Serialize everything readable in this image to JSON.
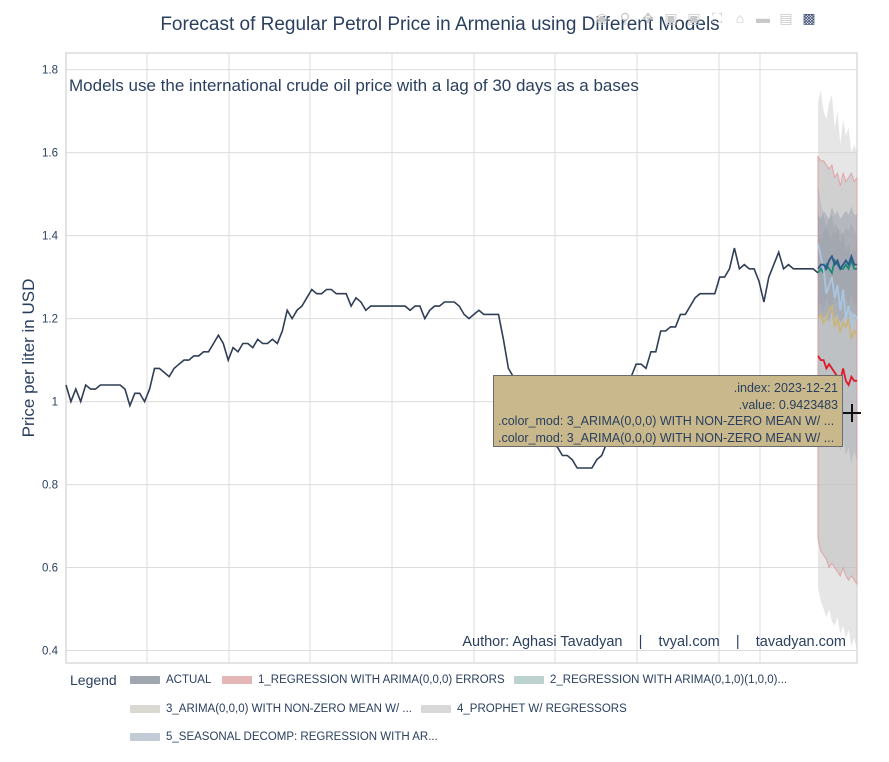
{
  "modebar": {
    "icons": [
      "camera-icon",
      "zoom-icon",
      "pan-icon",
      "zoom-in-icon",
      "zoom-out-icon",
      "autoscale-icon",
      "home-icon",
      "spike-lines-icon",
      "compare-icon",
      "plotly-logo-icon"
    ]
  },
  "tooltip": {
    "line1": ".index: 2023-12-21",
    "line2": ".value: 0.9423483",
    "line3": ".color_mod: 3_ARIMA(0,0,0) WITH NON-ZERO MEAN W/ ...",
    "line4": ".color_mod: 3_ARIMA(0,0,0) WITH NON-ZERO MEAN W/ ..."
  },
  "legend": {
    "title": "Legend",
    "items": [
      {
        "label": "ACTUAL",
        "color": "#9fa6b0"
      },
      {
        "label": "1_REGRESSION WITH ARIMA(0,0,0) ERRORS",
        "color": "#e3b7b7"
      },
      {
        "label": "2_REGRESSION WITH ARIMA(0,1,0)(1,0,0)...",
        "color": "#bcd2cf"
      },
      {
        "label": "3_ARIMA(0,0,0) WITH NON-ZERO MEAN W/ ...",
        "color": "#d9d9d1"
      },
      {
        "label": "4_PROPHET W/ REGRESSORS",
        "color": "#d8d8d8"
      },
      {
        "label": "5_SEASONAL DECOMP: REGRESSION WITH AR...",
        "color": "#c3ccd6"
      }
    ]
  },
  "chart_data": {
    "type": "line",
    "title": "Forecast of Regular Petrol Price in Armenia using Different Models",
    "subtitle": "Models use the international crude oil price with a lag of 30 days as a bases",
    "ylabel": "Price per liter in USD",
    "xlabel": "",
    "ylim": [
      0.37,
      1.84
    ],
    "yticks": [
      "0.4",
      "0.6",
      "0.8",
      "1",
      "1.2",
      "1.4",
      "1.6",
      "1.8"
    ],
    "ytick_values": [
      0.4,
      0.6,
      0.8,
      1.0,
      1.2,
      1.4,
      1.6,
      1.8
    ],
    "grid": true,
    "annotation": "Author: Aghasi Tavadyan    |    tvyal.com    |    tavadyan.com",
    "actual": {
      "name": "ACTUAL",
      "color": "#2f3e55",
      "values": [
        1.04,
        1.0,
        1.03,
        1.0,
        1.04,
        1.03,
        1.03,
        1.04,
        1.04,
        1.04,
        1.04,
        1.04,
        1.03,
        0.99,
        1.02,
        1.02,
        1.0,
        1.03,
        1.08,
        1.08,
        1.07,
        1.06,
        1.08,
        1.09,
        1.1,
        1.1,
        1.11,
        1.11,
        1.12,
        1.12,
        1.14,
        1.16,
        1.14,
        1.1,
        1.13,
        1.12,
        1.14,
        1.14,
        1.13,
        1.15,
        1.14,
        1.14,
        1.15,
        1.14,
        1.17,
        1.22,
        1.2,
        1.22,
        1.23,
        1.25,
        1.27,
        1.26,
        1.26,
        1.27,
        1.27,
        1.26,
        1.26,
        1.26,
        1.23,
        1.25,
        1.24,
        1.22,
        1.23,
        1.23,
        1.23,
        1.23,
        1.23,
        1.23,
        1.23,
        1.23,
        1.22,
        1.23,
        1.23,
        1.2,
        1.22,
        1.23,
        1.23,
        1.24,
        1.24,
        1.24,
        1.23,
        1.21,
        1.2,
        1.21,
        1.22,
        1.21,
        1.21,
        1.21,
        1.21,
        1.15,
        1.08,
        1.06,
        1.03,
        1.02,
        1.01,
        0.97,
        0.92,
        0.91,
        0.91,
        0.9,
        0.89,
        0.87,
        0.87,
        0.86,
        0.84,
        0.84,
        0.84,
        0.84,
        0.86,
        0.87,
        0.9,
        0.92,
        0.95,
        0.98,
        1.01,
        1.06,
        1.09,
        1.09,
        1.08,
        1.12,
        1.12,
        1.17,
        1.17,
        1.18,
        1.18,
        1.21,
        1.21,
        1.23,
        1.25,
        1.26,
        1.26,
        1.26,
        1.26,
        1.3,
        1.3,
        1.32,
        1.37,
        1.32,
        1.33,
        1.32,
        1.32,
        1.29,
        1.24,
        1.3,
        1.33,
        1.36,
        1.32,
        1.33,
        1.32,
        1.32,
        1.32,
        1.32,
        1.32,
        1.31
      ]
    },
    "forecasts": [
      {
        "name": "1_REGRESSION WITH ARIMA(0,0,0) ERRORS",
        "color": "#e2172a",
        "values": [
          1.11,
          1.1,
          1.1,
          1.08,
          1.09,
          1.08,
          1.07,
          1.06,
          1.05,
          1.08,
          1.05,
          1.04,
          1.06,
          1.05,
          1.05
        ],
        "upper": [
          1.59,
          1.58,
          1.58,
          1.57,
          1.56,
          1.57,
          1.54,
          1.55,
          1.52,
          1.55,
          1.53,
          1.54,
          1.55,
          1.53,
          1.54
        ],
        "lower": [
          0.67,
          0.64,
          0.63,
          0.62,
          0.6,
          0.61,
          0.6,
          0.59,
          0.58,
          0.6,
          0.58,
          0.57,
          0.58,
          0.57,
          0.56
        ]
      },
      {
        "name": "2_REGRESSION WITH ARIMA(0,1,0)(1,0,0)...",
        "color": "#1d8a7a",
        "values": [
          1.31,
          1.32,
          1.31,
          1.33,
          1.32,
          1.31,
          1.34,
          1.33,
          1.32,
          1.32,
          1.33,
          1.32,
          1.34,
          1.32,
          1.32
        ],
        "upper": [
          1.4,
          1.39,
          1.41,
          1.42,
          1.4,
          1.39,
          1.43,
          1.42,
          1.41,
          1.4,
          1.42,
          1.41,
          1.43,
          1.41,
          1.4
        ],
        "lower": [
          1.23,
          1.24,
          1.22,
          1.25,
          1.23,
          1.22,
          1.26,
          1.24,
          1.23,
          1.24,
          1.25,
          1.23,
          1.26,
          1.23,
          1.24
        ]
      },
      {
        "name": "3_ARIMA(0,0,0) WITH NON-ZERO MEAN W/ ...",
        "color": "#c9b57b",
        "values": [
          1.2,
          1.21,
          1.19,
          1.2,
          1.22,
          1.23,
          1.18,
          1.2,
          1.17,
          1.19,
          1.18,
          1.2,
          1.15,
          1.17,
          1.16
        ],
        "upper": [
          1.72,
          1.75,
          1.7,
          1.68,
          1.72,
          1.74,
          1.66,
          1.7,
          1.62,
          1.68,
          1.64,
          1.66,
          1.6,
          1.62,
          1.6
        ],
        "lower": [
          0.55,
          0.52,
          0.5,
          0.48,
          0.5,
          0.47,
          0.46,
          0.48,
          0.44,
          0.46,
          0.43,
          0.45,
          0.41,
          0.43,
          0.4
        ]
      },
      {
        "name": "4_PROPHET W/ REGRESSORS",
        "color": "#aac6e0",
        "values": [
          1.38,
          1.35,
          1.32,
          1.26,
          1.28,
          1.3,
          1.25,
          1.28,
          1.22,
          1.27,
          1.2,
          1.23,
          1.18,
          1.21,
          1.2
        ],
        "upper": [
          1.52,
          1.48,
          1.45,
          1.42,
          1.44,
          1.45,
          1.4,
          1.42,
          1.38,
          1.41,
          1.36,
          1.38,
          1.34,
          1.37,
          1.35
        ],
        "lower": [
          1.0,
          0.96,
          0.93,
          0.9,
          0.93,
          0.94,
          0.9,
          0.92,
          0.88,
          0.91,
          0.87,
          0.89,
          0.85,
          0.88,
          0.86
        ]
      },
      {
        "name": "5_SEASONAL DECOMP: REGRESSION WITH AR...",
        "color": "#31588c",
        "values": [
          1.32,
          1.33,
          1.33,
          1.32,
          1.34,
          1.35,
          1.33,
          1.34,
          1.32,
          1.33,
          1.34,
          1.33,
          1.35,
          1.33,
          1.33
        ],
        "upper": [
          1.45,
          1.44,
          1.46,
          1.45,
          1.44,
          1.47,
          1.45,
          1.46,
          1.44,
          1.45,
          1.46,
          1.45,
          1.47,
          1.45,
          1.45
        ],
        "lower": [
          1.2,
          1.21,
          1.2,
          1.21,
          1.19,
          1.22,
          1.2,
          1.21,
          1.19,
          1.2,
          1.21,
          1.2,
          1.22,
          1.2,
          1.2
        ]
      }
    ]
  }
}
